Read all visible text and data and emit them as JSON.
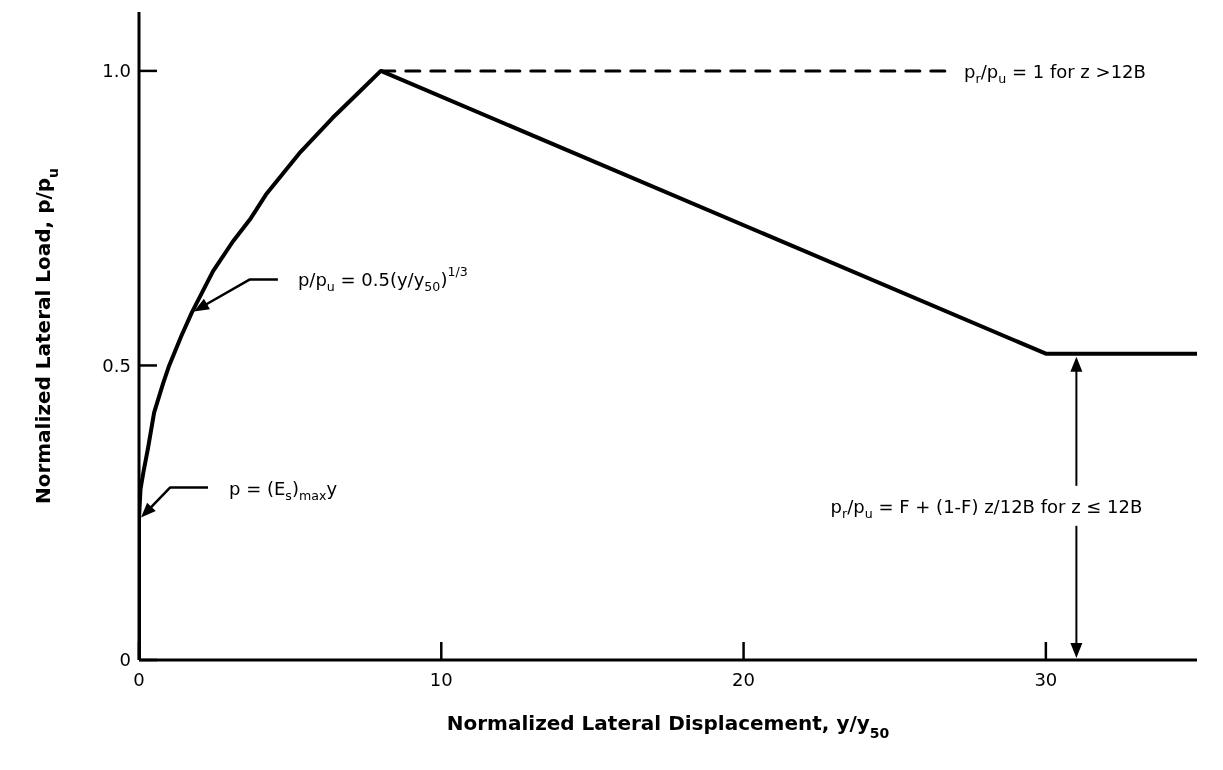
{
  "chart_data": {
    "type": "line",
    "xlabel": "Normalized Lateral Displacement, y/y$_{50}$",
    "ylabel": "Normalized Lateral Load, p/p$_{u}$",
    "series": [
      {
        "color": "#000000",
        "x": [
          0,
          0,
          0.05,
          0.15,
          0.3,
          0.5,
          0.8,
          1.0,
          1.4,
          1.75,
          2.45,
          3.1,
          3.7,
          4.2,
          5.3,
          6.4,
          7.2,
          8,
          30,
          35
        ],
        "values": [
          0,
          0.24,
          0.29,
          0.32,
          0.36,
          0.42,
          0.47,
          0.5,
          0.55,
          0.59,
          0.66,
          0.71,
          0.75,
          0.79,
          0.86,
          0.92,
          0.96,
          1.0,
          0.52,
          0.52
        ]
      },
      {
        "color": "#000000",
        "line_style": "dashed",
        "x": [
          8,
          26.7
        ],
        "values": [
          1,
          1
        ]
      }
    ],
    "xlim": [
      0,
      35
    ],
    "ylim": [
      0,
      1.1
    ],
    "xticks": [
      0,
      10,
      20,
      30
    ],
    "yticks": [
      0,
      0.5,
      {
        "value": 1,
        "label": "1.0"
      }
    ],
    "marker": "none",
    "line_style": "solid",
    "annotations": [
      "p/p$_{u}$ = 0.5(y/y$_{50}$)$^{1/3}$",
      "p = (E$_{s}$)$_{max}$y",
      {
        "text": "p$_{r}$/p$_{u}$ = 1 for z >12B",
        "x": 26.7,
        "y": 1
      },
      "p$_{r}$/p$_{u}$ = F + (1-F) z/12B for z ≤ 12B"
    ]
  }
}
